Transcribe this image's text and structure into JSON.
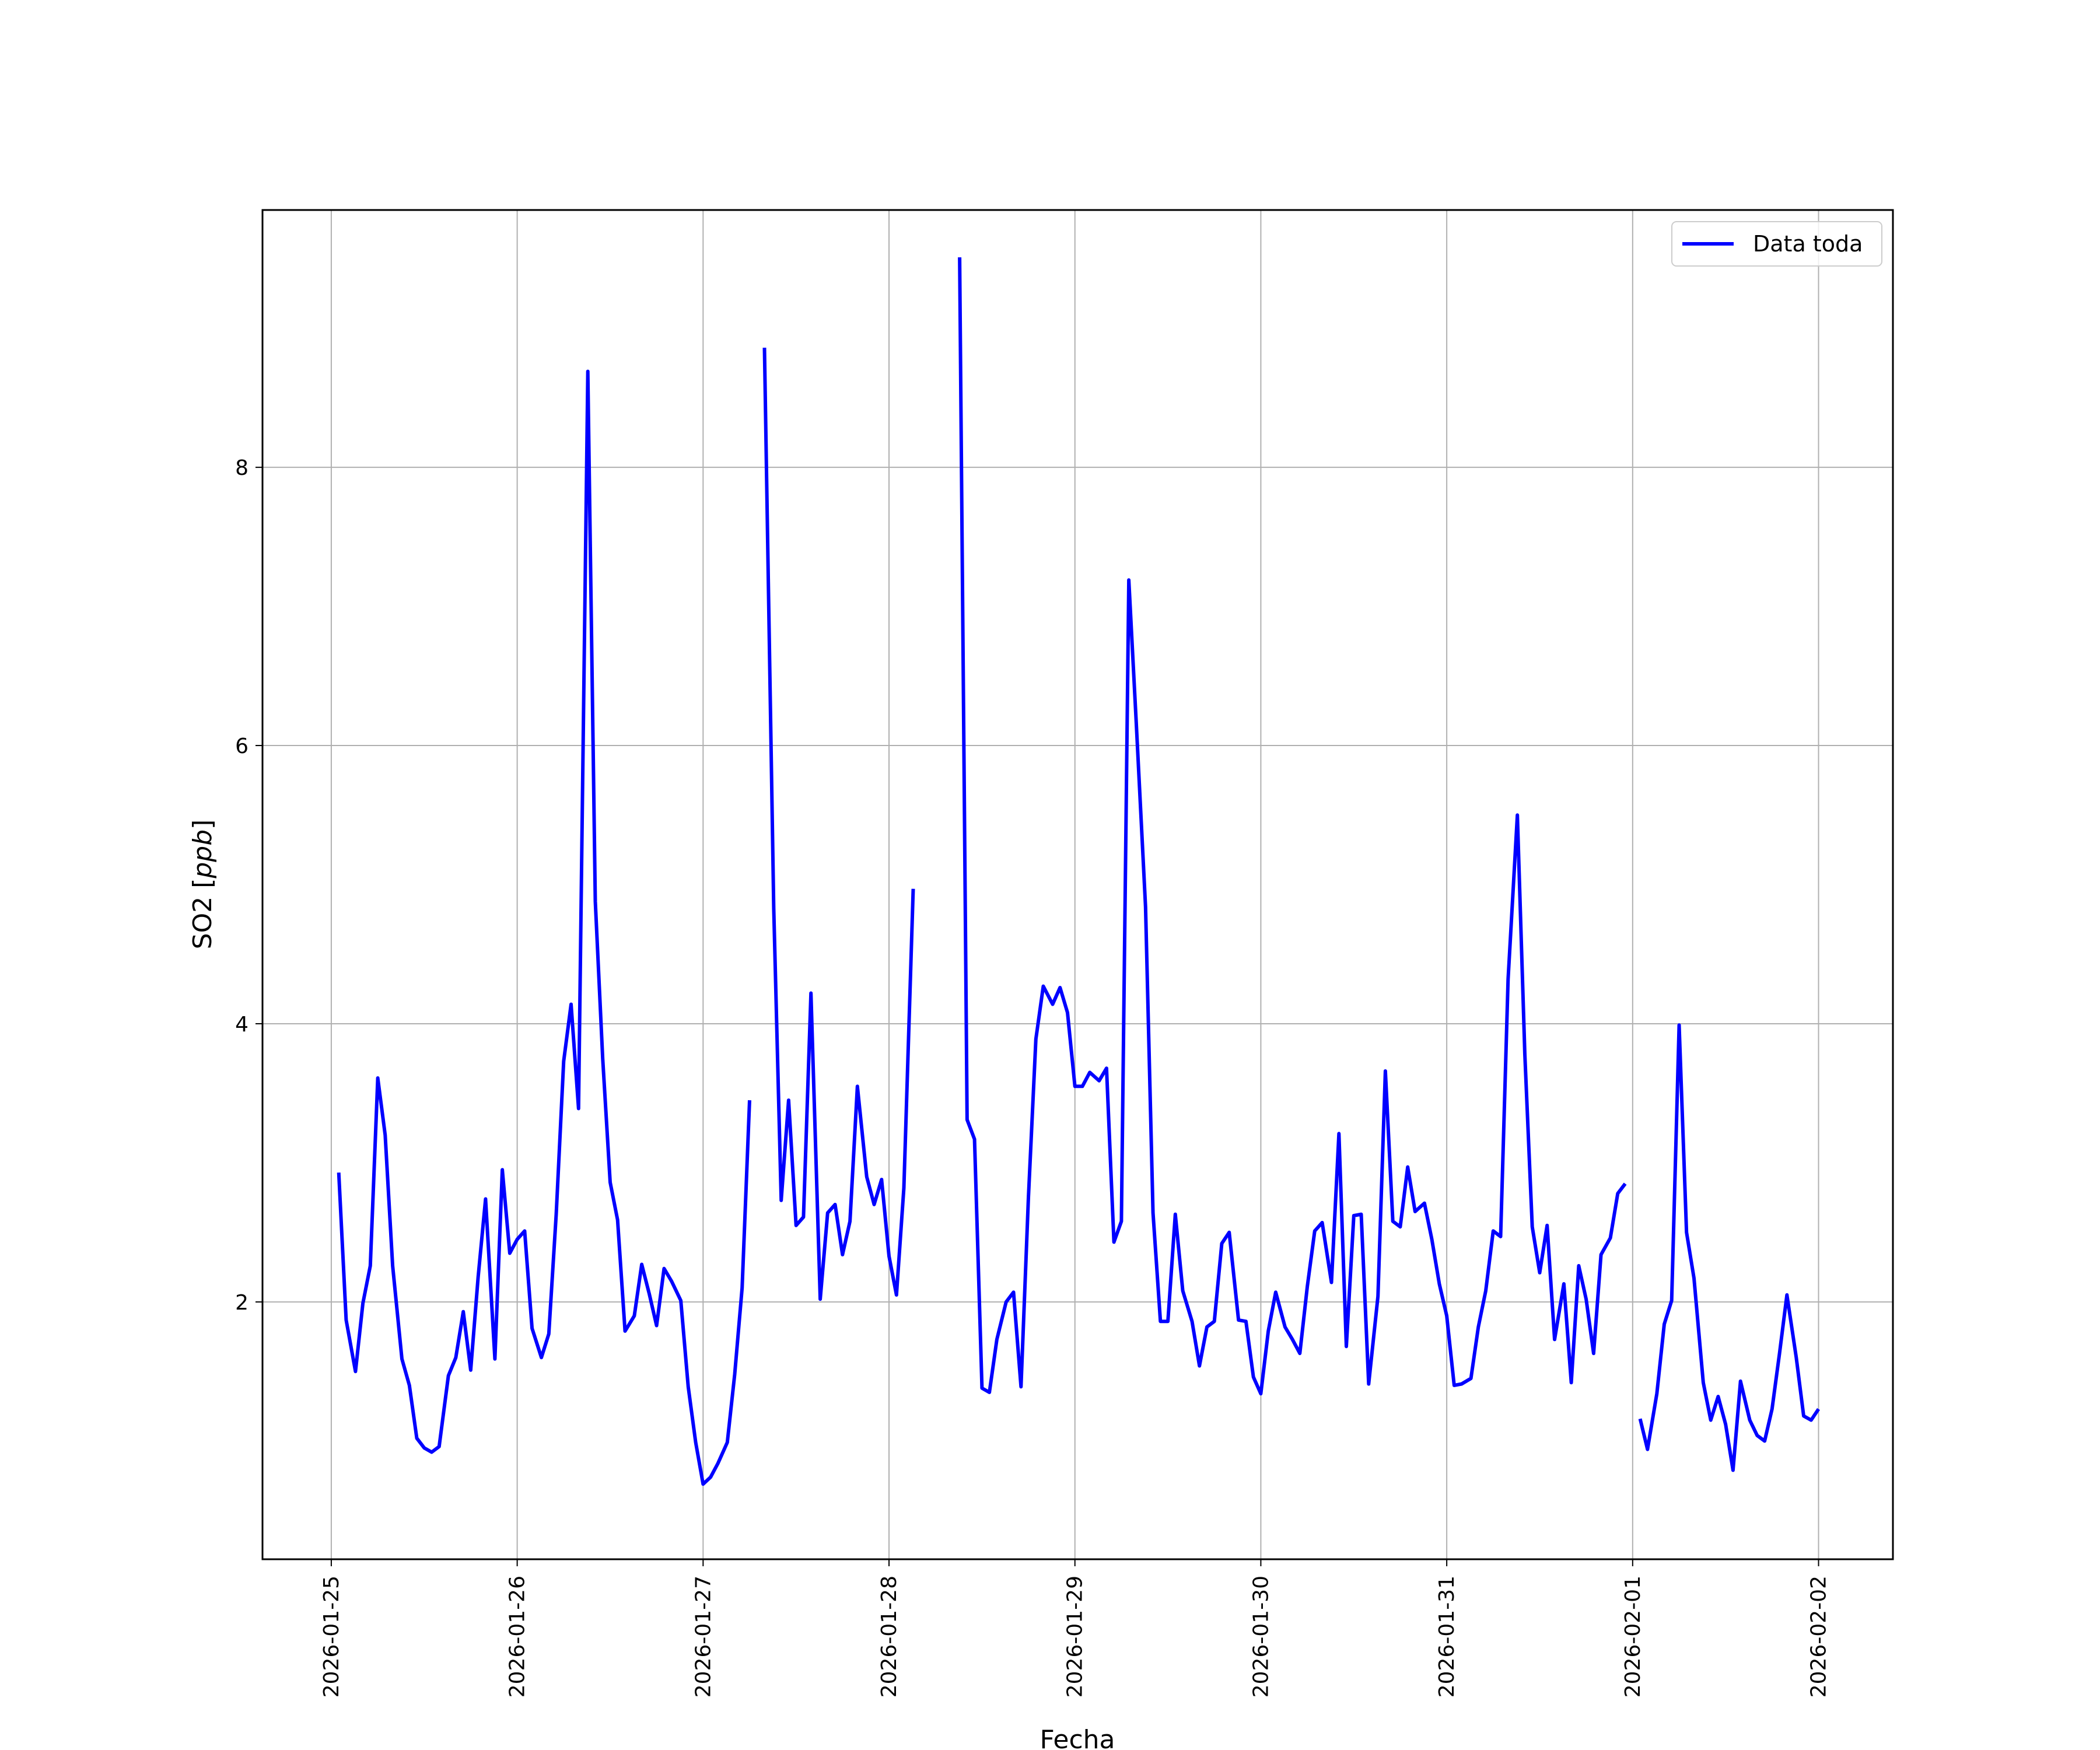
{
  "chart_data": {
    "type": "line",
    "title": "",
    "xlabel": "Fecha",
    "ylabel_prefix": "SO2 [",
    "ylabel_unit": "ppb",
    "ylabel_suffix": "]",
    "ylim": [
      0.15,
      9.85
    ],
    "xlim_days": [
      -0.37,
      8.4
    ],
    "x_ticks": [
      "2026-01-25",
      "2026-01-26",
      "2026-01-27",
      "2026-01-28",
      "2026-01-29",
      "2026-01-30",
      "2026-01-31",
      "2026-02-01",
      "2026-02-02"
    ],
    "y_ticks": [
      2,
      4,
      6,
      8
    ],
    "grid": true,
    "legend_position": "top-right",
    "series": [
      {
        "name": "Data toda",
        "color": "#0000ff",
        "segments": [
          [
            [
              0.04,
              2.93
            ],
            [
              0.08,
              1.87
            ],
            [
              0.13,
              1.5
            ],
            [
              0.17,
              1.99
            ],
            [
              0.21,
              2.26
            ],
            [
              0.25,
              3.61
            ],
            [
              0.29,
              3.2
            ],
            [
              0.33,
              2.26
            ],
            [
              0.38,
              1.59
            ],
            [
              0.42,
              1.4
            ],
            [
              0.46,
              1.02
            ],
            [
              0.5,
              0.95
            ],
            [
              0.54,
              0.92
            ],
            [
              0.58,
              0.96
            ],
            [
              0.63,
              1.47
            ],
            [
              0.67,
              1.6
            ],
            [
              0.71,
              1.93
            ],
            [
              0.75,
              1.51
            ],
            [
              0.79,
              2.18
            ],
            [
              0.83,
              2.74
            ],
            [
              0.88,
              1.59
            ],
            [
              0.92,
              2.95
            ],
            [
              0.96,
              2.35
            ],
            [
              1.0,
              2.45
            ],
            [
              1.04,
              2.51
            ],
            [
              1.08,
              1.81
            ],
            [
              1.13,
              1.6
            ],
            [
              1.17,
              1.77
            ],
            [
              1.21,
              2.63
            ],
            [
              1.25,
              3.73
            ],
            [
              1.29,
              4.14
            ],
            [
              1.33,
              3.39
            ],
            [
              1.38,
              8.69
            ],
            [
              1.42,
              4.88
            ],
            [
              1.46,
              3.75
            ],
            [
              1.5,
              2.86
            ],
            [
              1.54,
              2.59
            ],
            [
              1.58,
              1.79
            ],
            [
              1.63,
              1.9
            ],
            [
              1.67,
              2.27
            ],
            [
              1.71,
              2.06
            ],
            [
              1.75,
              1.83
            ],
            [
              1.79,
              2.24
            ],
            [
              1.83,
              2.15
            ],
            [
              1.88,
              2.01
            ],
            [
              1.92,
              1.39
            ],
            [
              1.96,
              0.99
            ],
            [
              2.0,
              0.69
            ],
            [
              2.04,
              0.74
            ],
            [
              2.08,
              0.84
            ],
            [
              2.13,
              0.99
            ],
            [
              2.17,
              1.48
            ],
            [
              2.21,
              2.1
            ],
            [
              2.25,
              3.45
            ]
          ],
          [
            [
              2.33,
              8.86
            ],
            [
              2.38,
              4.83
            ],
            [
              2.42,
              2.73
            ],
            [
              2.46,
              3.45
            ],
            [
              2.5,
              2.55
            ],
            [
              2.54,
              2.61
            ],
            [
              2.58,
              4.22
            ],
            [
              2.63,
              2.02
            ],
            [
              2.67,
              2.64
            ],
            [
              2.71,
              2.7
            ],
            [
              2.75,
              2.34
            ],
            [
              2.79,
              2.58
            ],
            [
              2.83,
              3.55
            ],
            [
              2.88,
              2.9
            ],
            [
              2.92,
              2.7
            ],
            [
              2.96,
              2.88
            ],
            [
              3.0,
              2.33
            ],
            [
              3.04,
              2.05
            ],
            [
              3.08,
              2.82
            ],
            [
              3.13,
              4.97
            ]
          ],
          [
            [
              3.38,
              9.51
            ],
            [
              3.42,
              3.31
            ],
            [
              3.46,
              3.17
            ],
            [
              3.5,
              1.38
            ],
            [
              3.54,
              1.35
            ],
            [
              3.58,
              1.73
            ],
            [
              3.63,
              2.0
            ],
            [
              3.67,
              2.07
            ],
            [
              3.71,
              1.39
            ],
            [
              3.75,
              2.75
            ],
            [
              3.79,
              3.89
            ],
            [
              3.83,
              4.27
            ],
            [
              3.88,
              4.14
            ],
            [
              3.92,
              4.26
            ],
            [
              3.96,
              4.08
            ],
            [
              4.0,
              3.55
            ],
            [
              4.04,
              3.55
            ],
            [
              4.08,
              3.65
            ],
            [
              4.13,
              3.59
            ],
            [
              4.17,
              3.68
            ],
            [
              4.21,
              2.43
            ],
            [
              4.25,
              2.58
            ],
            [
              4.29,
              7.19
            ],
            [
              4.33,
              6.16
            ],
            [
              4.38,
              4.84
            ],
            [
              4.42,
              2.64
            ],
            [
              4.46,
              1.86
            ],
            [
              4.5,
              1.86
            ],
            [
              4.54,
              2.63
            ],
            [
              4.58,
              2.08
            ],
            [
              4.63,
              1.86
            ],
            [
              4.67,
              1.54
            ],
            [
              4.71,
              1.82
            ],
            [
              4.75,
              1.86
            ],
            [
              4.79,
              2.42
            ],
            [
              4.83,
              2.5
            ],
            [
              4.88,
              1.87
            ],
            [
              4.92,
              1.86
            ],
            [
              4.96,
              1.46
            ],
            [
              5.0,
              1.34
            ],
            [
              5.04,
              1.79
            ],
            [
              5.08,
              2.07
            ],
            [
              5.13,
              1.82
            ],
            [
              5.17,
              1.73
            ],
            [
              5.21,
              1.63
            ],
            [
              5.25,
              2.11
            ],
            [
              5.29,
              2.51
            ],
            [
              5.33,
              2.57
            ],
            [
              5.38,
              2.14
            ],
            [
              5.42,
              3.21
            ],
            [
              5.46,
              1.68
            ],
            [
              5.5,
              2.62
            ],
            [
              5.54,
              2.63
            ],
            [
              5.58,
              1.41
            ],
            [
              5.63,
              2.04
            ],
            [
              5.67,
              3.66
            ],
            [
              5.71,
              2.58
            ],
            [
              5.75,
              2.54
            ],
            [
              5.79,
              2.97
            ],
            [
              5.83,
              2.65
            ],
            [
              5.88,
              2.71
            ],
            [
              5.92,
              2.45
            ],
            [
              5.96,
              2.13
            ],
            [
              6.0,
              1.9
            ],
            [
              6.04,
              1.4
            ],
            [
              6.08,
              1.41
            ],
            [
              6.13,
              1.45
            ],
            [
              6.17,
              1.82
            ],
            [
              6.21,
              2.08
            ],
            [
              6.25,
              2.51
            ],
            [
              6.29,
              2.47
            ],
            [
              6.33,
              4.32
            ],
            [
              6.38,
              5.5
            ],
            [
              6.42,
              3.78
            ],
            [
              6.46,
              2.54
            ],
            [
              6.5,
              2.21
            ],
            [
              6.54,
              2.55
            ],
            [
              6.58,
              1.73
            ],
            [
              6.63,
              2.13
            ],
            [
              6.67,
              1.42
            ],
            [
              6.71,
              2.26
            ],
            [
              6.75,
              2.02
            ],
            [
              6.79,
              1.63
            ],
            [
              6.83,
              2.34
            ],
            [
              6.88,
              2.46
            ],
            [
              6.92,
              2.78
            ],
            [
              6.96,
              2.85
            ]
          ],
          [
            [
              7.04,
              1.16
            ],
            [
              7.08,
              0.94
            ],
            [
              7.13,
              1.34
            ],
            [
              7.17,
              1.84
            ],
            [
              7.21,
              2.01
            ],
            [
              7.25,
              3.99
            ],
            [
              7.29,
              2.5
            ],
            [
              7.33,
              2.17
            ],
            [
              7.38,
              1.42
            ],
            [
              7.42,
              1.15
            ],
            [
              7.46,
              1.32
            ],
            [
              7.5,
              1.12
            ],
            [
              7.54,
              0.79
            ],
            [
              7.58,
              1.43
            ],
            [
              7.63,
              1.15
            ],
            [
              7.67,
              1.04
            ],
            [
              7.71,
              1.0
            ],
            [
              7.75,
              1.23
            ],
            [
              7.79,
              1.63
            ],
            [
              7.83,
              2.05
            ],
            [
              7.88,
              1.6
            ],
            [
              7.92,
              1.18
            ],
            [
              7.96,
              1.15
            ],
            [
              8.0,
              1.23
            ]
          ]
        ]
      }
    ]
  }
}
